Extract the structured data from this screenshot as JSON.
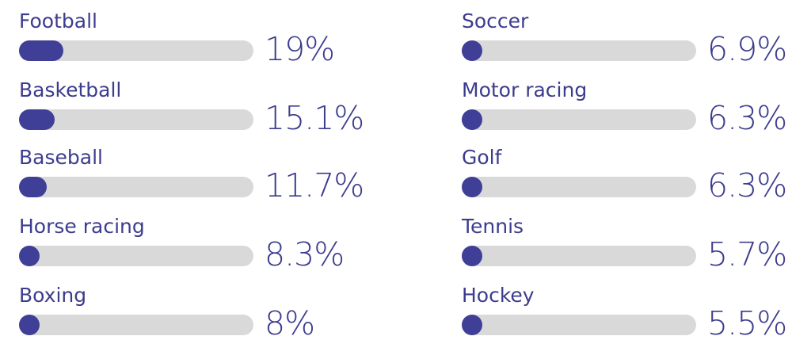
{
  "chart_data": {
    "type": "bar",
    "orientation": "horizontal",
    "categories": [
      "Football",
      "Basketball",
      "Baseball",
      "Horse racing",
      "Boxing",
      "Soccer",
      "Motor racing",
      "Golf",
      "Tennis",
      "Hockey"
    ],
    "values": [
      19,
      15.1,
      11.7,
      8.3,
      8,
      6.9,
      6.3,
      6.3,
      5.7,
      5.5
    ],
    "value_labels": [
      "19%",
      "15.1%",
      "11.7%",
      "8.3%",
      "8%",
      "6.9%",
      "6.3%",
      "6.3%",
      "5.7%",
      "5.5%"
    ],
    "fill_fractions": [
      0.19,
      0.151,
      0.117,
      0.083,
      0.08,
      0.069,
      0.063,
      0.063,
      0.057,
      0.055
    ],
    "columns": 2,
    "grid": false,
    "legend": "none",
    "colors": {
      "bar_fill": "#3f3f97",
      "track": "#d9d9d9",
      "text": "#3c3c8e"
    }
  }
}
